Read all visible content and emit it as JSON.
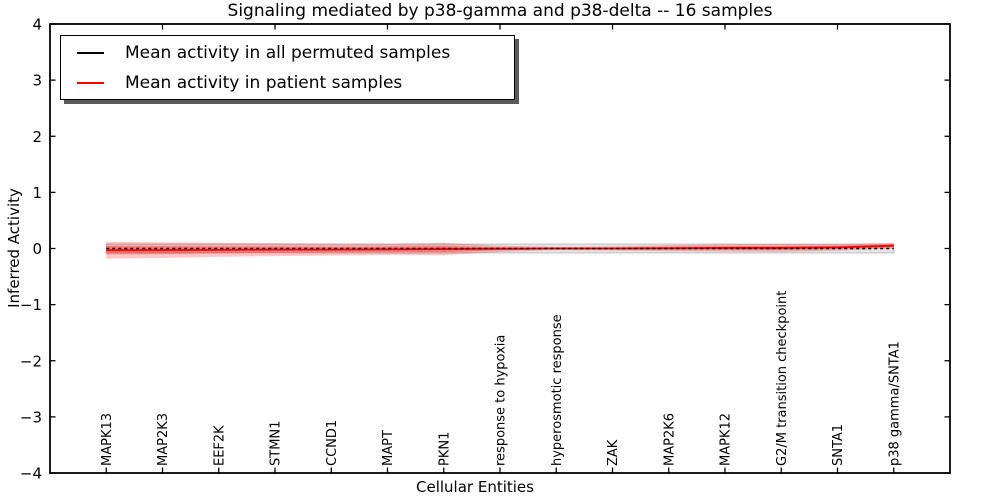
{
  "figure": {
    "title": "Signaling mediated by p38-gamma and p38-delta -- 16 samples",
    "xlabel": "Cellular Entities",
    "ylabel": "Inferred Activity"
  },
  "chart_data": {
    "type": "line",
    "title": "Signaling mediated by p38-gamma and p38-delta -- 16 samples",
    "xlabel": "Cellular Entities",
    "ylabel": "Inferred Activity",
    "ylim": [
      -4,
      4
    ],
    "yticks": [
      4,
      3,
      2,
      1,
      0,
      -1,
      -2,
      -3,
      -4
    ],
    "ytick_labels": [
      "4",
      "3",
      "2",
      "1",
      "0",
      "−1",
      "−2",
      "−3",
      "−4"
    ],
    "grid": false,
    "legend_position": "upper left",
    "frame_color": "#000000",
    "categories": [
      "MAPK13",
      "MAP2K3",
      "EEF2K",
      "STMN1",
      "CCND1",
      "MAPT",
      "PKN1",
      "response to hypoxia",
      "hyperosmotic response",
      "ZAK",
      "MAP2K6",
      "MAPK12",
      "G2/M transition checkpoint",
      "SNTA1",
      "p38 gamma/SNTA1"
    ],
    "series": [
      {
        "name": "Mean activity in all permuted samples",
        "color": "#000000",
        "linestyle": "dashed",
        "values": [
          0,
          0,
          0,
          0,
          0,
          0,
          0,
          0,
          0,
          0,
          0,
          0,
          0,
          0,
          0
        ],
        "bands": [
          {
            "name": "permuted-std-band",
            "color": "rgba(0,0,0,0.10)",
            "edge_color": "rgba(0,0,0,0.20)",
            "halfwidths": [
              0.08,
              0.08,
              0.08,
              0.08,
              0.08,
              0.08,
              0.08,
              0.08,
              0.08,
              0.08,
              0.08,
              0.08,
              0.08,
              0.08,
              0.08
            ]
          }
        ]
      },
      {
        "name": "Mean activity in patient samples",
        "color": "#ff0000",
        "linestyle": "solid",
        "values": [
          -0.03,
          -0.03,
          -0.025,
          -0.02,
          -0.02,
          -0.015,
          -0.01,
          -0.005,
          0,
          0,
          0.005,
          0.01,
          0.01,
          0.02,
          0.05
        ],
        "bands": [
          {
            "name": "patient-std-band-outer",
            "color": "rgba(255,0,0,0.22)",
            "edge_color": "none",
            "halfwidths": [
              0.15,
              0.14,
              0.125,
              0.115,
              0.105,
              0.1,
              0.11,
              0.055,
              0.03,
              0.035,
              0.055,
              0.065,
              0.07,
              0.06,
              0.05
            ]
          },
          {
            "name": "patient-std-band-inner",
            "color": "rgba(255,0,0,0.30)",
            "edge_color": "none",
            "halfwidths": [
              0.075,
              0.07,
              0.06,
              0.055,
              0.05,
              0.05,
              0.055,
              0.027,
              0.015,
              0.017,
              0.027,
              0.032,
              0.035,
              0.03,
              0.025
            ]
          }
        ]
      }
    ]
  }
}
